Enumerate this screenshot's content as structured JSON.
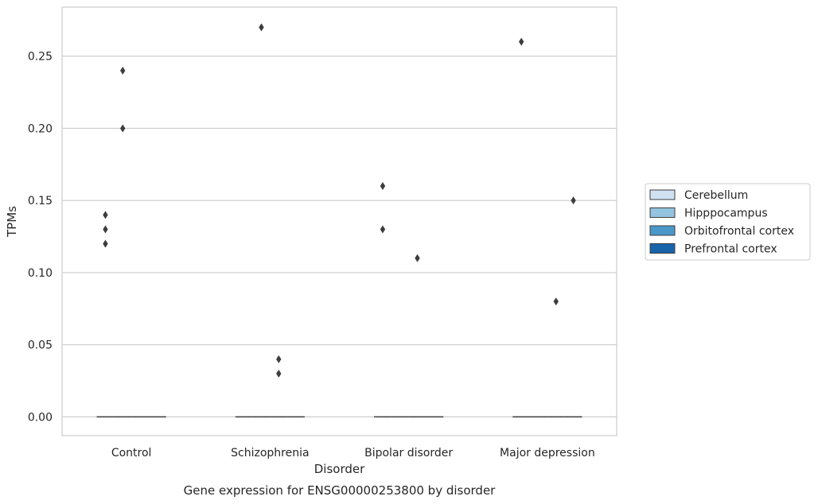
{
  "chart_data": {
    "type": "box",
    "title": "Gene expression for ENSG00000253800 by disorder",
    "xlabel": "Disorder",
    "ylabel": "TPMs",
    "categories": [
      "Control",
      "Schizophrenia",
      "Bipolar disorder",
      "Major depression"
    ],
    "ylim": [
      -0.013,
      0.284
    ],
    "yticks": [
      "0.00",
      "0.05",
      "0.10",
      "0.15",
      "0.20",
      "0.25"
    ],
    "grid": true,
    "legend_position": "right",
    "series": [
      {
        "name": "Cerebellum",
        "color": "#d0e1f2",
        "medians": [
          0,
          0,
          0,
          0
        ],
        "outliers": [
          [
            0.12,
            0.13,
            0.14
          ],
          [],
          [
            0.13,
            0.16
          ],
          [
            0.26
          ]
        ]
      },
      {
        "name": "Hipppocampus",
        "color": "#94c4df",
        "medians": [
          0,
          0,
          0,
          0
        ],
        "outliers": [
          [
            0.2,
            0.24
          ],
          [
            0.27
          ],
          [],
          []
        ]
      },
      {
        "name": "Orbitofrontal cortex",
        "color": "#4a98c9",
        "medians": [
          0,
          0,
          0,
          0
        ],
        "outliers": [
          [],
          [
            0.03,
            0.04
          ],
          [
            0.11
          ],
          [
            0.08
          ]
        ]
      },
      {
        "name": "Prefrontal cortex",
        "color": "#1764ab",
        "medians": [
          0,
          0,
          0,
          0
        ],
        "outliers": [
          [],
          [],
          [],
          [
            0.15
          ]
        ]
      }
    ]
  }
}
